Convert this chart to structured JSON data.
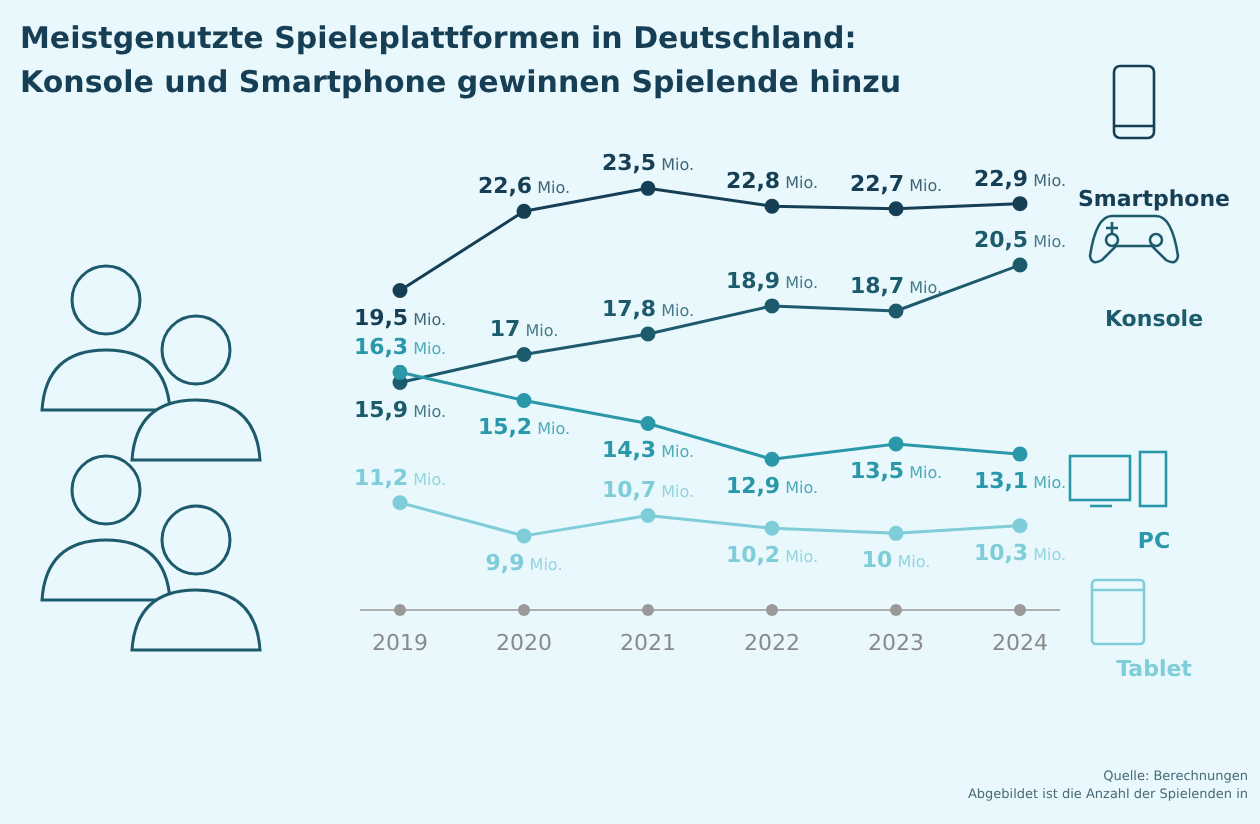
{
  "chart_data": {
    "type": "line",
    "title": "Meistgenutzte Spieleplattformen in Deutschland: Konsole und Smartphone gewinnen Spielende hinzu",
    "categories": [
      "2019",
      "2020",
      "2021",
      "2022",
      "2023",
      "2024"
    ],
    "tick_labels": "x",
    "series": [
      {
        "name": "Smartphone",
        "color": "#163f55",
        "values": [
          19.5,
          22.6,
          23.5,
          22.8,
          22.7,
          22.9
        ],
        "value_labels": [
          "19,5 Mio.",
          "22,6 Mio.",
          "23,5 Mio.",
          "22,8 Mio.",
          "22,7 Mio.",
          "22,9 Mio."
        ]
      },
      {
        "name": "Konsole",
        "color": "#1d5b6c",
        "values": [
          15.9,
          17,
          17.8,
          18.9,
          18.7,
          20.5
        ],
        "value_labels": [
          "15,9 Mio.",
          "17 Mio.",
          "17,8 Mio.",
          "18,9 Mio.",
          "18,7 Mio.",
          "20,5 Mio."
        ]
      },
      {
        "name": "PC",
        "color": "#2a98a8",
        "values": [
          16.3,
          15.2,
          14.3,
          12.9,
          13.5,
          13.1
        ],
        "value_labels": [
          "16,3 Mio.",
          "15,2 Mio.",
          "14,3 Mio.",
          "12,9 Mio.",
          "13,5 Mio.",
          "13,1 Mio."
        ]
      },
      {
        "name": "Tablet",
        "color": "#7fcdd8",
        "values": [
          11.2,
          9.9,
          10.7,
          10.2,
          10,
          10.3
        ],
        "value_labels": [
          "11,2 Mio.",
          "9,9 Mio.",
          "10,7 Mio.",
          "10,2 Mio.",
          "10 Mio.",
          "10,3 Mio."
        ]
      }
    ],
    "marker": "circle",
    "line_style": "solid",
    "legend": "right",
    "annotations": [
      "Quelle: Berechnungen",
      "Abgebildet ist die Anzahl der Spielenden in"
    ]
  }
}
